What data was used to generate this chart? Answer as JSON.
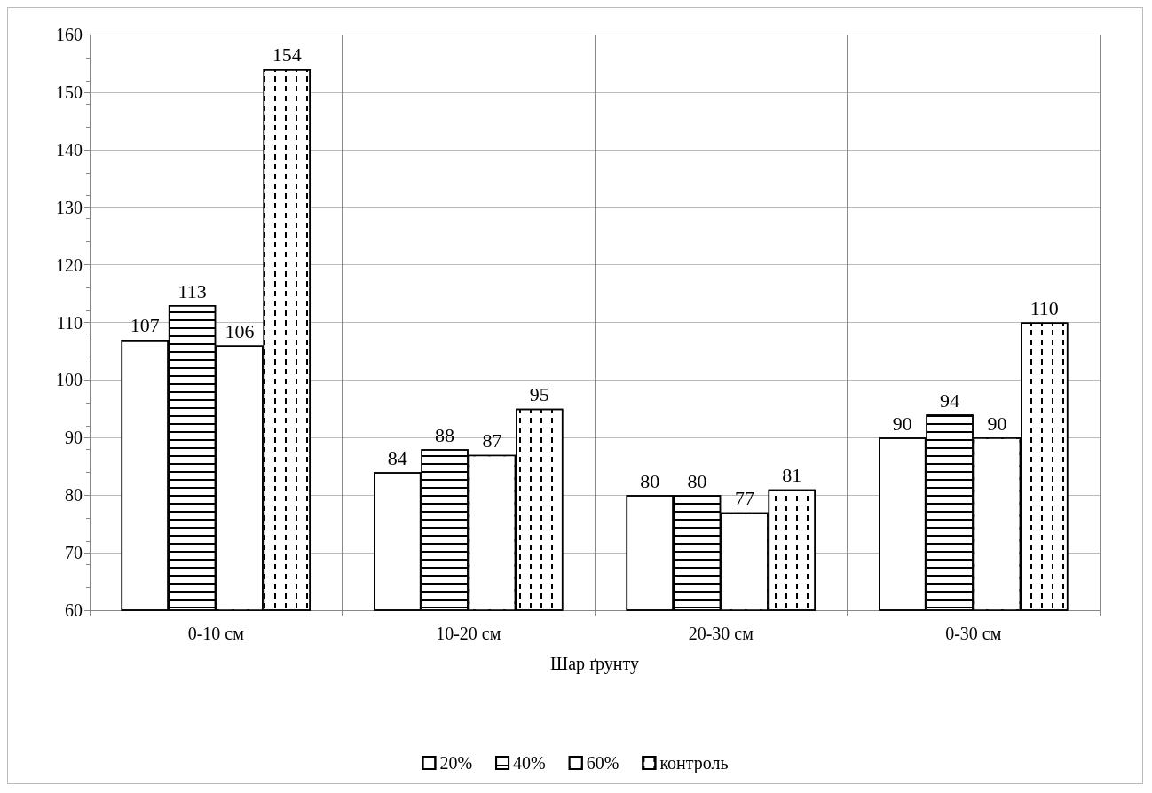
{
  "chart_data": {
    "type": "bar",
    "xlabel": "Шар ґрунту",
    "categories": [
      "0-10 см",
      "10-20 см",
      "20-30 см",
      "0-30 см"
    ],
    "series": [
      {
        "name": "20%",
        "color": "#ffffff",
        "values": [
          107,
          84,
          80,
          90
        ]
      },
      {
        "name": "40%",
        "color": "#ffffff",
        "values": [
          113,
          88,
          80,
          94
        ]
      },
      {
        "name": "60%",
        "color": "#ffffff",
        "values": [
          106,
          87,
          77,
          90
        ]
      },
      {
        "name": "контроль",
        "color": "#ffffff",
        "values": [
          154,
          95,
          81,
          110
        ]
      }
    ],
    "ylim": [
      60,
      160
    ],
    "yticks": [
      60,
      70,
      80,
      90,
      100,
      110,
      120,
      130,
      140,
      150,
      160
    ],
    "grid": true,
    "legend": "bottom",
    "data_labels": true
  }
}
